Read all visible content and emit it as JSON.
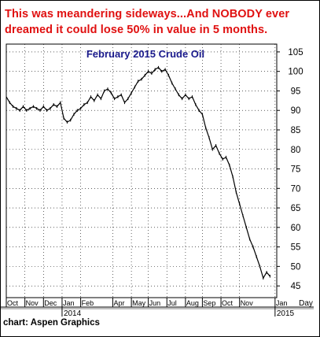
{
  "headline": "This was meandering sideways...And NOBODY ever\ndreamed it could lose 50% in value in 5 months.",
  "source": "chart: Aspen Graphics",
  "colors": {
    "headline": "#e01010",
    "chart_title": "#1a1a8c",
    "price_line": "#000000",
    "grid": "#000000"
  },
  "chart_data": {
    "type": "line",
    "title": "February 2015 Crude Oil",
    "xlabel": "",
    "ylabel": "",
    "x_axis_label": "Day",
    "ylim": [
      42,
      107
    ],
    "y_ticks": [
      45,
      50,
      55,
      60,
      65,
      70,
      75,
      80,
      85,
      90,
      95,
      100,
      105
    ],
    "x_ticks": [
      "Oct",
      "Nov",
      "Dec",
      "Jan",
      "Feb",
      "Apr",
      "May",
      "Jun",
      "Jul",
      "Aug",
      "Sep",
      "Oct",
      "Nov",
      "Jan"
    ],
    "year_labels": [
      "2014",
      "2015"
    ],
    "grid": "dotted",
    "series": [
      {
        "values": [
          [
            0,
            93.5
          ],
          [
            2,
            92
          ],
          [
            4,
            91
          ],
          [
            6,
            90.5
          ],
          [
            8,
            90
          ],
          [
            10,
            91
          ],
          [
            12,
            90
          ],
          [
            14,
            90.5
          ],
          [
            16,
            91
          ],
          [
            18,
            90.5
          ],
          [
            20,
            90
          ],
          [
            22,
            91
          ],
          [
            24,
            90
          ],
          [
            26,
            90.5
          ],
          [
            28,
            91.5
          ],
          [
            30,
            91
          ],
          [
            32,
            92
          ],
          [
            34,
            88
          ],
          [
            36,
            87
          ],
          [
            38,
            87.5
          ],
          [
            40,
            89
          ],
          [
            42,
            90
          ],
          [
            44,
            90.5
          ],
          [
            46,
            91.5
          ],
          [
            48,
            92
          ],
          [
            50,
            93.5
          ],
          [
            52,
            92.5
          ],
          [
            54,
            94
          ],
          [
            56,
            93
          ],
          [
            58,
            95
          ],
          [
            60,
            95.5
          ],
          [
            62,
            94.5
          ],
          [
            64,
            93
          ],
          [
            66,
            93.5
          ],
          [
            68,
            94
          ],
          [
            70,
            92
          ],
          [
            72,
            93
          ],
          [
            74,
            94.5
          ],
          [
            76,
            96
          ],
          [
            78,
            97.5
          ],
          [
            80,
            98
          ],
          [
            82,
            99
          ],
          [
            84,
            100
          ],
          [
            86,
            99.5
          ],
          [
            88,
            100.5
          ],
          [
            90,
            101
          ],
          [
            92,
            100
          ],
          [
            94,
            100.5
          ],
          [
            96,
            99
          ],
          [
            98,
            97
          ],
          [
            100,
            95.5
          ],
          [
            102,
            94
          ],
          [
            104,
            93
          ],
          [
            106,
            94
          ],
          [
            108,
            93
          ],
          [
            110,
            93.5
          ],
          [
            112,
            91.5
          ],
          [
            114,
            90
          ],
          [
            116,
            89
          ],
          [
            118,
            85.5
          ],
          [
            120,
            83
          ],
          [
            122,
            80
          ],
          [
            124,
            81
          ],
          [
            126,
            79
          ],
          [
            128,
            77.5
          ],
          [
            130,
            78
          ],
          [
            132,
            76
          ],
          [
            134,
            73
          ],
          [
            136,
            69
          ],
          [
            138,
            66
          ],
          [
            140,
            63
          ],
          [
            142,
            60
          ],
          [
            144,
            57
          ],
          [
            146,
            55
          ],
          [
            148,
            52.5
          ],
          [
            150,
            50
          ],
          [
            152,
            47
          ],
          [
            154,
            48.5
          ],
          [
            156,
            47.5
          ]
        ]
      }
    ],
    "x_range": [
      0,
      160
    ],
    "month_ticks": [
      0,
      11,
      22,
      33,
      44,
      63,
      74,
      84,
      95,
      106,
      116,
      127,
      138,
      159
    ]
  }
}
